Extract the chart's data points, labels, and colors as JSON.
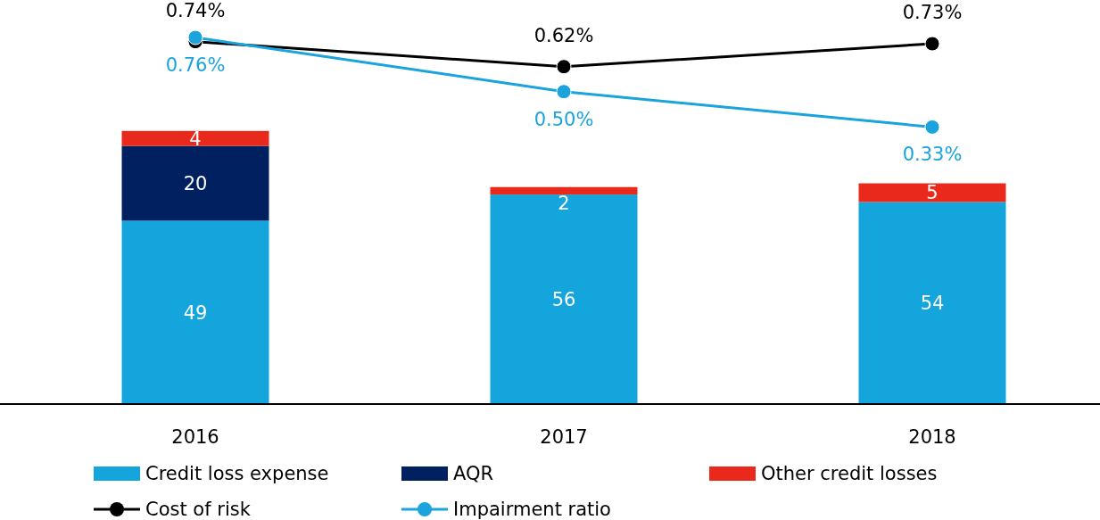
{
  "chart_data": {
    "type": "bar",
    "stacked": true,
    "categories": [
      "2016",
      "2017",
      "2018"
    ],
    "series": [
      {
        "name": "Credit loss expense",
        "color": "#14a5dc",
        "values": [
          49,
          56,
          54
        ]
      },
      {
        "name": "AQR",
        "color": "#002060",
        "values": [
          20,
          null,
          null
        ]
      },
      {
        "name": "Other credit losses",
        "color": "#e8291c",
        "values": [
          4,
          2,
          5
        ]
      },
      {
        "name": "Cost of risk",
        "type": "line",
        "axis": "y2",
        "color": "#000000",
        "marker": "circle",
        "values": [
          0.74,
          0.62,
          0.73
        ],
        "value_labels": [
          "0.74%",
          "0.62%",
          "0.73%"
        ]
      },
      {
        "name": "Impairment ratio",
        "type": "line",
        "axis": "y2",
        "color": "#1aa3dd",
        "marker": "circle",
        "values": [
          0.76,
          0.5,
          0.33
        ],
        "value_labels": [
          "0.76%",
          "0.50%",
          "0.33%"
        ]
      }
    ],
    "ylim": [
      0,
      108
    ],
    "y2lim": [
      -1,
      0.94
    ],
    "tick_labels": "x",
    "data_labels": true,
    "legend": "bottom"
  }
}
